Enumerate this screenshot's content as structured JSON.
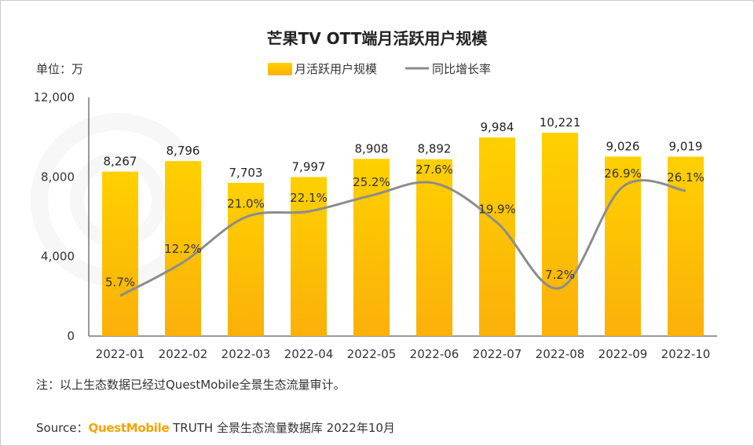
{
  "chart_data": {
    "type": "bar",
    "title": "芒果TV OTT端月活跃用户规模",
    "unit_label": "单位：万",
    "categories": [
      "2022-01",
      "2022-02",
      "2022-03",
      "2022-04",
      "2022-05",
      "2022-06",
      "2022-07",
      "2022-08",
      "2022-09",
      "2022-10"
    ],
    "series": [
      {
        "name": "月活跃用户规模",
        "type": "bar",
        "color": "#ffc400",
        "values": [
          8267,
          8796,
          7703,
          7997,
          8908,
          8892,
          9984,
          10221,
          9026,
          9019
        ],
        "value_labels": [
          "8,267",
          "8,796",
          "7,703",
          "7,997",
          "8,908",
          "8,892",
          "9,984",
          "10,221",
          "9,026",
          "9,019"
        ]
      },
      {
        "name": "同比增长率",
        "type": "line",
        "color": "#8c8c8c",
        "values": [
          5.7,
          12.2,
          21.0,
          22.1,
          25.2,
          27.6,
          19.9,
          7.2,
          26.9,
          26.1
        ],
        "value_labels": [
          "5.7%",
          "12.2%",
          "21.0%",
          "22.1%",
          "25.2%",
          "27.6%",
          "19.9%",
          "7.2%",
          "26.9%",
          "26.1%"
        ]
      }
    ],
    "y_ticks": [
      "0",
      "4,000",
      "8,000",
      "12,000"
    ],
    "ylim": [
      0,
      12000
    ],
    "legend_position": "top-center",
    "grid": false
  },
  "note": "注：以上生态数据已经过QuestMobile全景生态流量审计。",
  "source": {
    "prefix": "Source：",
    "brand": "QuestMobile",
    "rest": " TRUTH 全景生态流量数据库 2022年10月"
  },
  "colors": {
    "bar_top": "#ffd000",
    "bar_bottom": "#fbb00a",
    "line": "#8c8c8c",
    "brand": "#f5a400"
  }
}
